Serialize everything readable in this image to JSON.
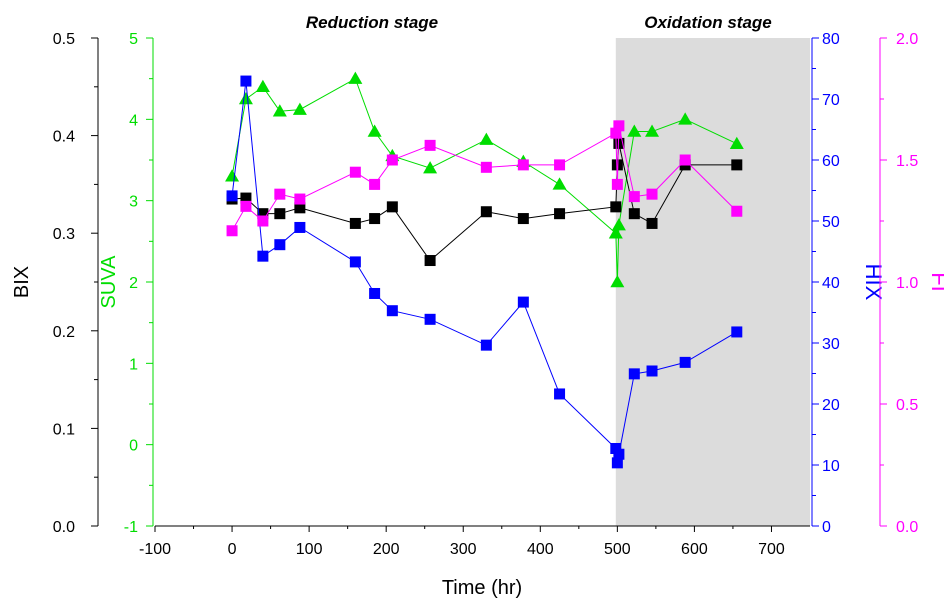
{
  "chart_data": {
    "type": "line",
    "xlabel": "Time (hr)",
    "xlim": [
      -100,
      750
    ],
    "xticks": [
      -100,
      0,
      100,
      200,
      300,
      400,
      500,
      600,
      700
    ],
    "grid": false,
    "legend": "none",
    "stage_labels": [
      {
        "text": "Reduction stage"
      },
      {
        "text": "Oxidation stage"
      }
    ],
    "shaded_region": {
      "from": 498,
      "to": 750,
      "color": "#dcdcdc"
    },
    "axes": [
      {
        "id": "bix",
        "label": "BIX",
        "side": "left-outer",
        "range": [
          0.0,
          0.5
        ],
        "ticks": [
          "0.0",
          "0.1",
          "0.2",
          "0.3",
          "0.4",
          "0.5"
        ],
        "color": "#000000"
      },
      {
        "id": "suva",
        "label": "SUVA",
        "side": "left-inner",
        "range": [
          -1,
          5
        ],
        "ticks": [
          "-1",
          "0",
          "1",
          "2",
          "3",
          "4",
          "5"
        ],
        "color": "#00dd00"
      },
      {
        "id": "hix",
        "label": "HIX",
        "side": "right-inner",
        "range": [
          0,
          85
        ],
        "ticks": [
          "0",
          "10",
          "20",
          "30",
          "40",
          "50",
          "60",
          "70",
          "80"
        ],
        "color": "#0000ff"
      },
      {
        "id": "fi",
        "label": "FI",
        "side": "right-outer",
        "range": [
          0.0,
          2.0
        ],
        "ticks": [
          "0.0",
          "0.5",
          "1.0",
          "1.5",
          "2.0"
        ],
        "color": "#ff00ff"
      }
    ],
    "series": [
      {
        "axis": "suva",
        "marker": "triangle",
        "color": "#00dd00",
        "x": [
          0,
          18,
          40,
          62,
          88,
          160,
          185,
          208,
          257,
          330,
          378,
          425,
          498,
          500,
          502,
          522,
          545,
          588,
          655
        ],
        "y": [
          3.3,
          4.25,
          4.4,
          4.1,
          4.12,
          4.5,
          3.85,
          3.55,
          3.4,
          3.75,
          3.48,
          3.2,
          2.6,
          2.0,
          2.7,
          3.85,
          3.85,
          4.0,
          3.7
        ]
      },
      {
        "axis": "bix",
        "marker": "square",
        "color": "#000000",
        "x": [
          0,
          18,
          40,
          62,
          88,
          160,
          185,
          208,
          257,
          330,
          378,
          425,
          498,
          500,
          502,
          522,
          545,
          588,
          655
        ],
        "y": [
          0.335,
          0.336,
          0.32,
          0.32,
          0.326,
          0.31,
          0.315,
          0.327,
          0.272,
          0.322,
          0.315,
          0.32,
          0.327,
          0.37,
          0.392,
          0.32,
          0.31,
          0.37,
          0.37
        ]
      },
      {
        "axis": "hix",
        "marker": "square",
        "color": "#0000ff",
        "x": [
          0,
          18,
          40,
          62,
          88,
          160,
          185,
          208,
          257,
          330,
          378,
          425,
          498,
          500,
          502,
          522,
          545,
          588,
          655
        ],
        "y": [
          57.5,
          77.5,
          47,
          49,
          52,
          46,
          40.5,
          37.5,
          36,
          31.5,
          39,
          23,
          13.5,
          11,
          12.5,
          26.5,
          27,
          28.5,
          33.8
        ]
      },
      {
        "axis": "fi",
        "marker": "square",
        "color": "#ff00ff",
        "x": [
          0,
          18,
          40,
          62,
          88,
          160,
          185,
          208,
          257,
          330,
          378,
          425,
          498,
          500,
          502,
          522,
          545,
          588,
          655
        ],
        "y": [
          1.21,
          1.31,
          1.25,
          1.36,
          1.34,
          1.45,
          1.4,
          1.5,
          1.56,
          1.47,
          1.48,
          1.48,
          1.61,
          1.4,
          1.64,
          1.35,
          1.36,
          1.5,
          1.29
        ]
      }
    ]
  }
}
